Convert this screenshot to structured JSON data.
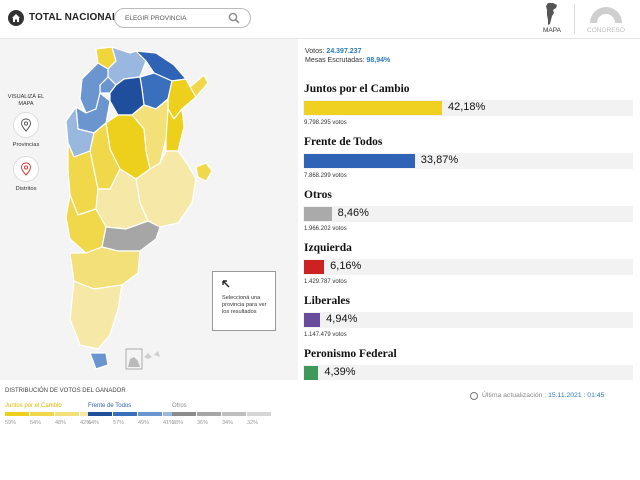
{
  "header": {
    "national_label": "TOTAL NACIONAL",
    "province_placeholder": "ELEGIR PROVINCIA",
    "map_tab_label": "MAPA",
    "congress_tab_label": "CONGRESO"
  },
  "sidebar": {
    "visualize_label": "VISUALIZÁ EL MAPA",
    "provinces_label": "Provincias",
    "districts_label": "Distritos"
  },
  "tooltip": {
    "text": "Seleccioná una provincia para ver los resultados"
  },
  "summary": {
    "votes_label": "Votos:",
    "votes_value": "24.397.237",
    "tables_label": "Mesas Escrutadas:",
    "tables_value": "98,94%"
  },
  "results": [
    {
      "name": "Juntos por el Cambio",
      "pct": 42.18,
      "pct_label": "42,18%",
      "votes": "9.798.295 votos",
      "color": "#f0d020"
    },
    {
      "name": "Frente de Todos",
      "pct": 33.87,
      "pct_label": "33,87%",
      "votes": "7.868.299 votos",
      "color": "#2e63b5"
    },
    {
      "name": "Otros",
      "pct": 8.46,
      "pct_label": "8,46%",
      "votes": "1.966.202 votos",
      "color": "#aaaaaa"
    },
    {
      "name": "Izquierda",
      "pct": 6.16,
      "pct_label": "6,16%",
      "votes": "1.429.787 votos",
      "color": "#cc2222"
    },
    {
      "name": "Liberales",
      "pct": 4.94,
      "pct_label": "4,94%",
      "votes": "1.147.479 votos",
      "color": "#6a4c9c"
    },
    {
      "name": "Peronismo Federal",
      "pct": 4.39,
      "pct_label": "4,39%",
      "votes": "",
      "color": "#3f9a5a"
    }
  ],
  "legend": {
    "title": "DISTRIBUCIÓN DE VOTOS DEL GANADOR",
    "groups": [
      {
        "name": "Juntos por el Cambio",
        "color": "#e0b800",
        "shades": [
          "#ecd01c",
          "#f0d84a",
          "#f3e078",
          "#f6e9a8"
        ],
        "steps": [
          "59%",
          "54%",
          "48%",
          "42%"
        ]
      },
      {
        "name": "Frente de Todos",
        "color": "#2e63b5",
        "shades": [
          "#1f4f9c",
          "#3a6fbd",
          "#6a95cf",
          "#9ab8df"
        ],
        "steps": [
          "64%",
          "57%",
          "49%",
          "41%"
        ]
      },
      {
        "name": "Otros",
        "color": "#888888",
        "shades": [
          "#8c8c8c",
          "#a6a6a6",
          "#bfbfbf",
          "#d6d6d6"
        ],
        "steps": [
          "38%",
          "36%",
          "34%",
          "32%"
        ]
      }
    ]
  },
  "update": {
    "label": "Última actualización :",
    "value": "15.11.2021 : 01:45"
  }
}
